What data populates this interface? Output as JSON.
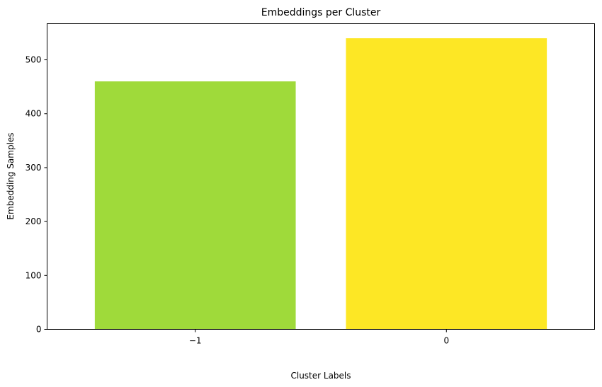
{
  "chart_data": {
    "type": "bar",
    "title": "Embeddings per Cluster",
    "xlabel": "Cluster Labels",
    "ylabel": "Embedding Samples",
    "categories": [
      "−1",
      "0"
    ],
    "values": [
      460,
      540
    ],
    "colors": [
      "#9fda3a",
      "#fde725"
    ],
    "ylim": [
      0,
      567
    ],
    "yticks": [
      0,
      100,
      200,
      300,
      400,
      500
    ],
    "grid": false,
    "legend": "none"
  }
}
